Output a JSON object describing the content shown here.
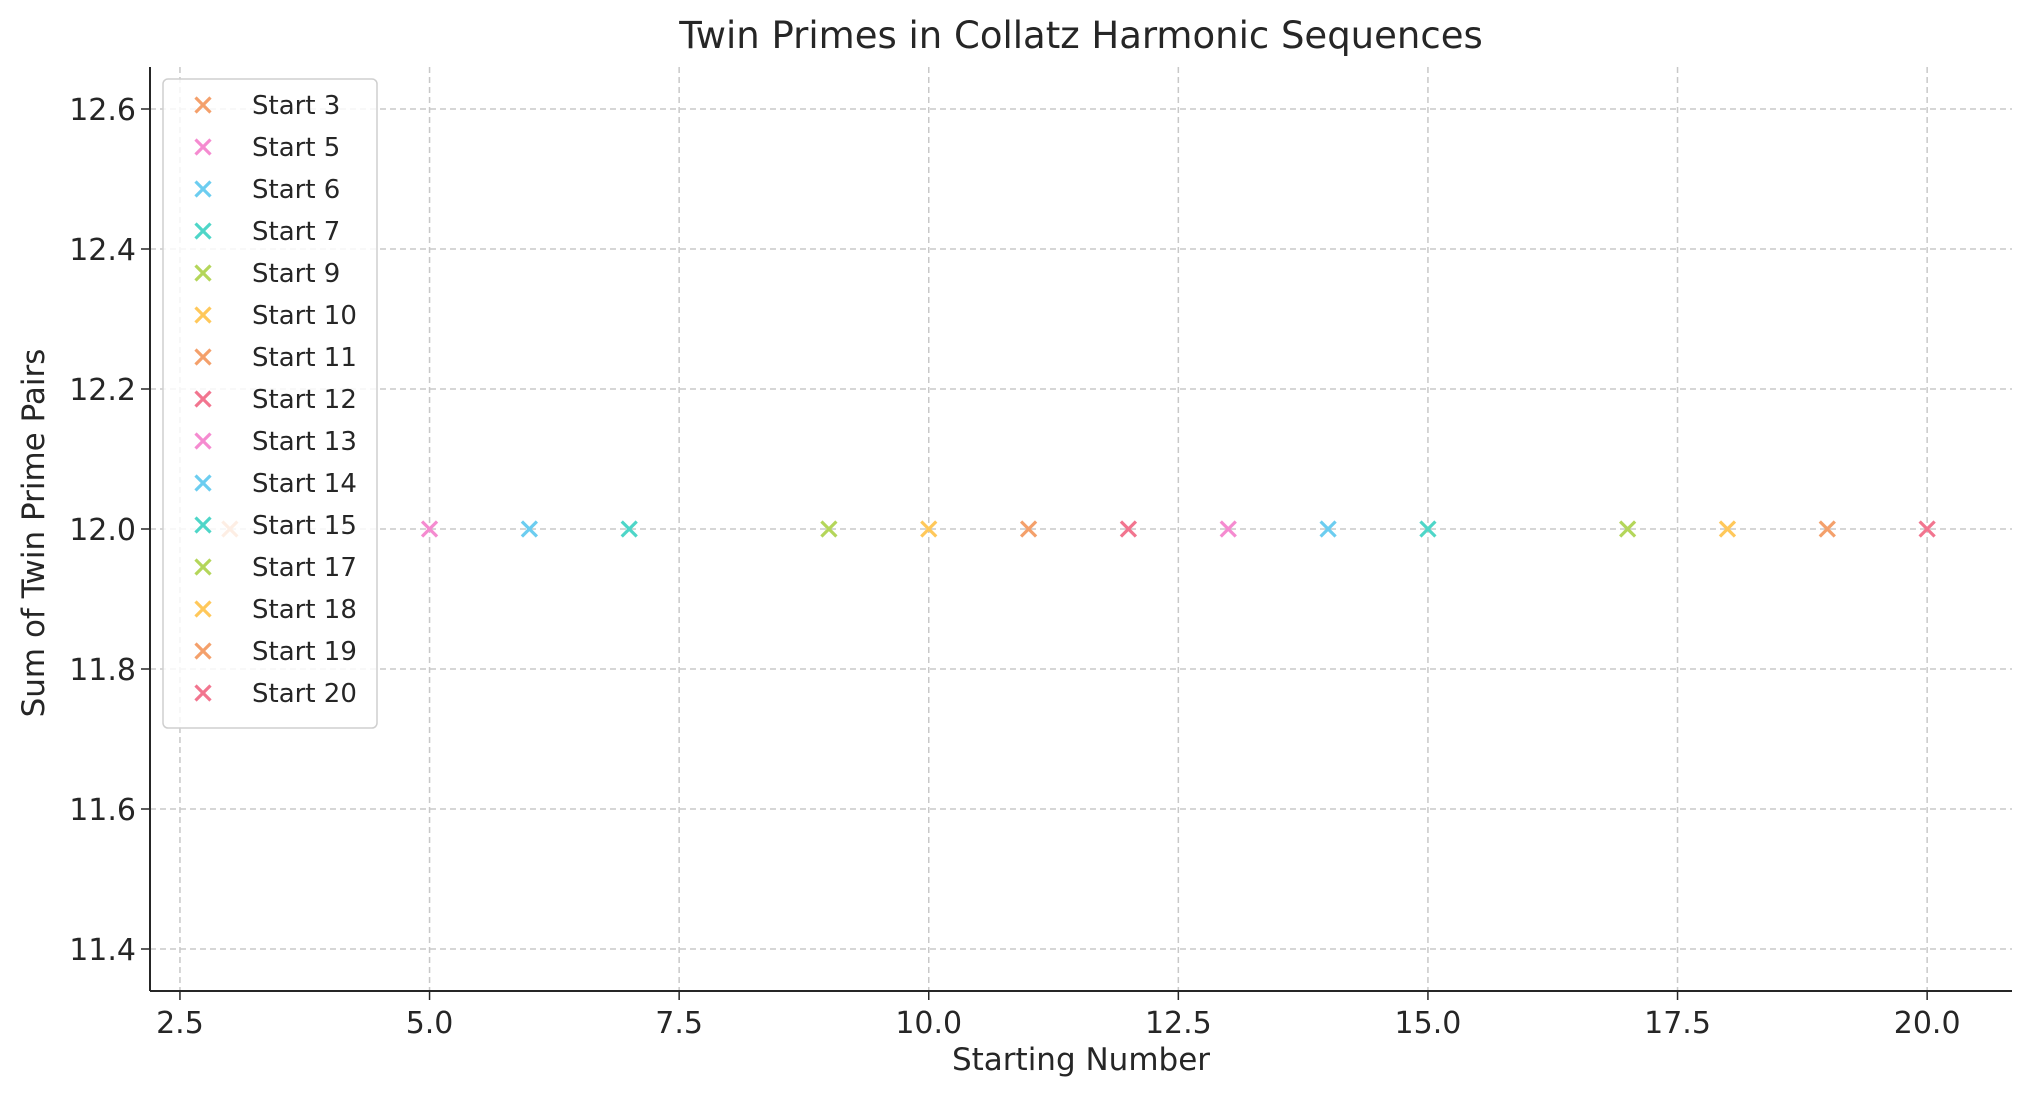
{
  "chart_data": {
    "type": "scatter",
    "title": "Twin Primes in Collatz Harmonic Sequences",
    "xlabel": "Starting Number",
    "ylabel": "Sum of Twin Prime Pairs",
    "xlim": [
      2.2,
      20.85
    ],
    "ylim": [
      11.34,
      12.66
    ],
    "xticks": [
      2.5,
      5.0,
      7.5,
      10.0,
      12.5,
      15.0,
      17.5,
      20.0
    ],
    "xtick_labels": [
      "2.5",
      "5.0",
      "7.5",
      "10.0",
      "12.5",
      "15.0",
      "17.5",
      "20.0"
    ],
    "yticks": [
      11.4,
      11.6,
      11.8,
      12.0,
      12.2,
      12.4,
      12.6
    ],
    "ytick_labels": [
      "11.4",
      "11.6",
      "11.8",
      "12.0",
      "12.2",
      "12.4",
      "12.6"
    ],
    "grid": true,
    "marker": "x",
    "legend_position": "upper-left",
    "series": [
      {
        "name": "Start 3",
        "color": "#F4A06B",
        "points": [
          [
            3,
            12.0
          ]
        ]
      },
      {
        "name": "Start 5",
        "color": "#F58BD0",
        "points": [
          [
            5,
            12.0
          ]
        ]
      },
      {
        "name": "Start 6",
        "color": "#6CCDF0",
        "points": [
          [
            6,
            12.0
          ]
        ]
      },
      {
        "name": "Start 7",
        "color": "#4ED6C8",
        "points": [
          [
            7,
            12.0
          ]
        ]
      },
      {
        "name": "Start 9",
        "color": "#B4D65A",
        "points": [
          [
            9,
            12.0
          ]
        ]
      },
      {
        "name": "Start 10",
        "color": "#FFC85A",
        "points": [
          [
            10,
            12.0
          ]
        ]
      },
      {
        "name": "Start 11",
        "color": "#F4A06B",
        "points": [
          [
            11,
            12.0
          ]
        ]
      },
      {
        "name": "Start 12",
        "color": "#F2758F",
        "points": [
          [
            12,
            12.0
          ]
        ]
      },
      {
        "name": "Start 13",
        "color": "#F58BD0",
        "points": [
          [
            13,
            12.0
          ]
        ]
      },
      {
        "name": "Start 14",
        "color": "#6CCDF0",
        "points": [
          [
            14,
            12.0
          ]
        ]
      },
      {
        "name": "Start 15",
        "color": "#4ED6C8",
        "points": [
          [
            15,
            12.0
          ]
        ]
      },
      {
        "name": "Start 17",
        "color": "#B4D65A",
        "points": [
          [
            17,
            12.0
          ]
        ]
      },
      {
        "name": "Start 18",
        "color": "#FFC85A",
        "points": [
          [
            18,
            12.0
          ]
        ]
      },
      {
        "name": "Start 19",
        "color": "#F4A06B",
        "points": [
          [
            19,
            12.0
          ]
        ]
      },
      {
        "name": "Start 20",
        "color": "#F2758F",
        "points": [
          [
            20,
            12.0
          ]
        ]
      }
    ]
  }
}
